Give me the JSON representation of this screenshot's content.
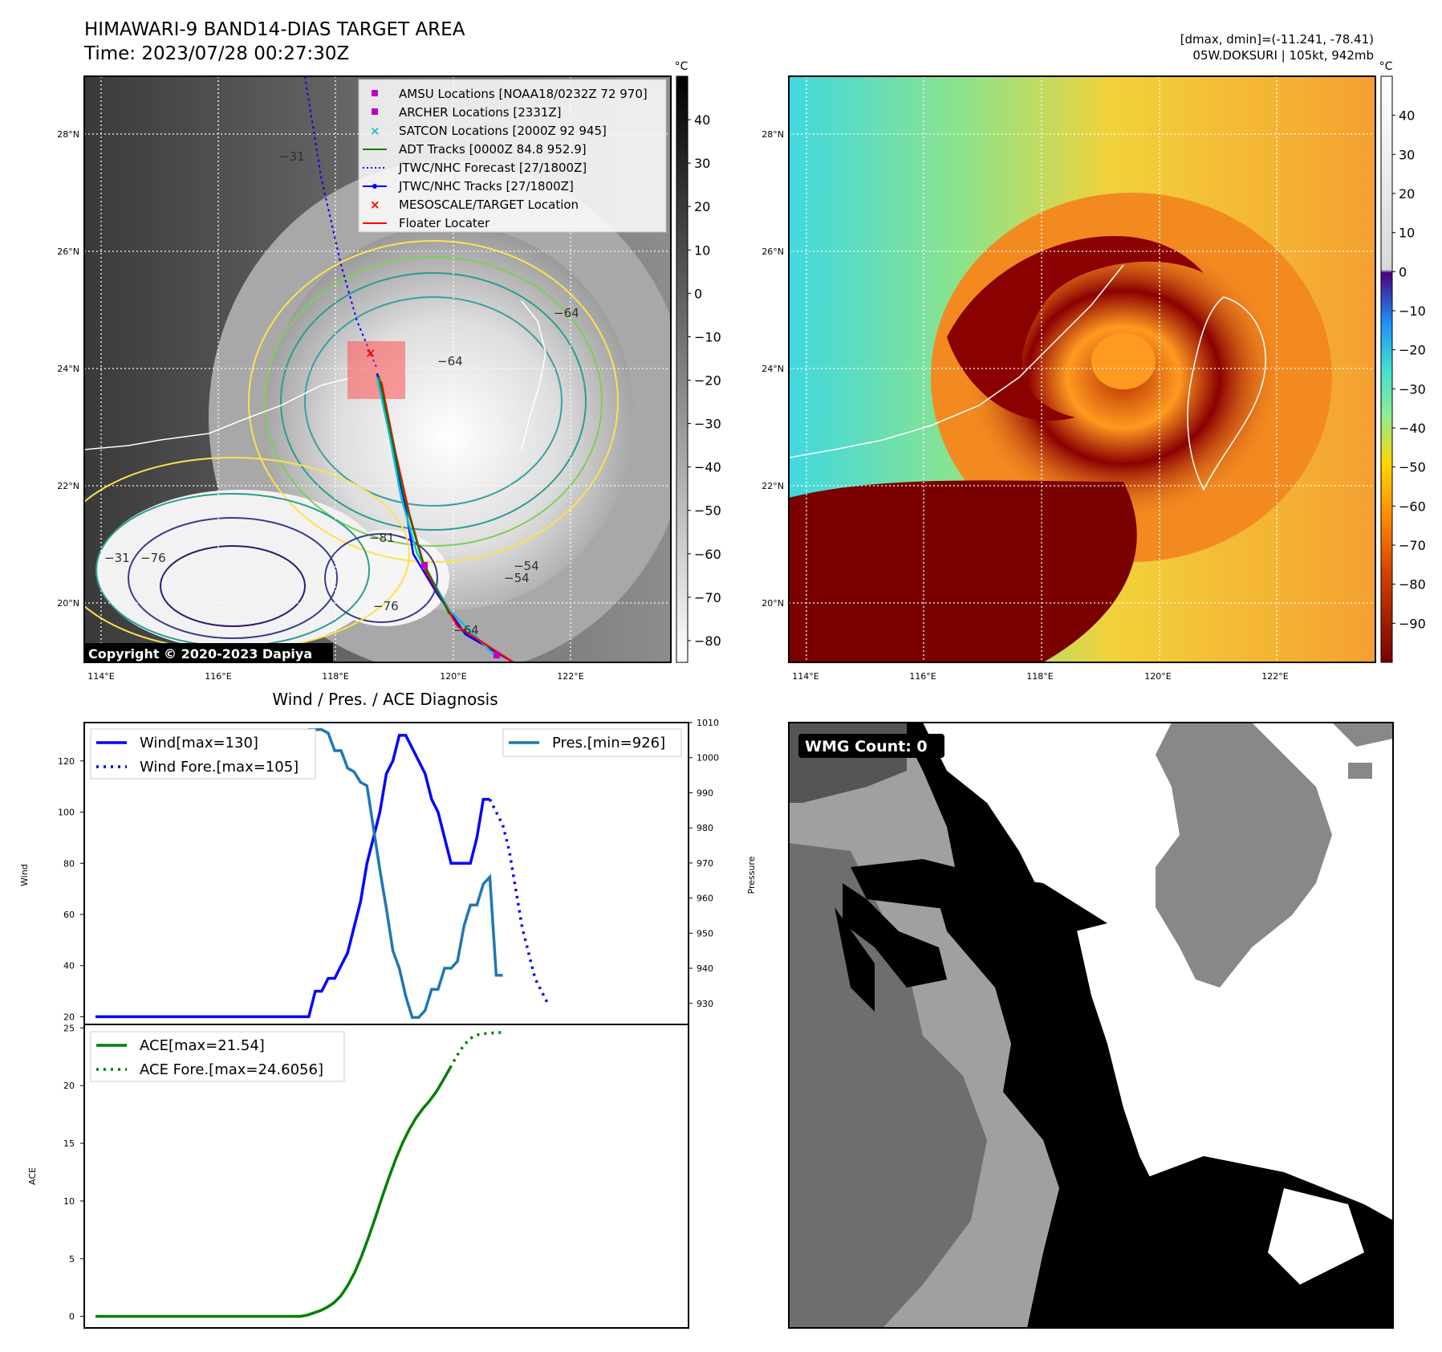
{
  "header": {
    "title": "HIMAWARI-9 BAND14-DIAS TARGET AREA",
    "time": "Time: 2023/07/28 00:27:30Z",
    "dmax_dmin": "[dmax, dmin]=(-11.241, -78.41)",
    "storm": "05W.DOKSURI | 105kt, 942mb"
  },
  "maps": {
    "lon_ticks": [
      "114°E",
      "116°E",
      "118°E",
      "120°E",
      "122°E"
    ],
    "lat_ticks": [
      "28°N",
      "26°N",
      "24°N",
      "22°N",
      "20°N"
    ],
    "unit": "°C",
    "copyright": "Copyright © 2020-2023 Dapiya",
    "left_colorbar_ticks": [
      "40",
      "30",
      "20",
      "10",
      "0",
      "−10",
      "−20",
      "−30",
      "−40",
      "−50",
      "−60",
      "−70",
      "−80"
    ],
    "right_colorbar_ticks": [
      "40",
      "30",
      "20",
      "10",
      "0",
      "−10",
      "−20",
      "−30",
      "−40",
      "−50",
      "−60",
      "−70",
      "−80",
      "−90"
    ],
    "contour_labels": [
      "−31",
      "−54",
      "−64",
      "−76",
      "−81",
      "−76",
      "−64",
      "−54",
      "−31",
      "−64"
    ],
    "legend": [
      "AMSU Locations [NOAA18/0232Z 72 970]",
      "ARCHER Locations [2331Z]",
      "SATCON Locations [2000Z 92 945]",
      "ADT Tracks [0000Z 84.8 952.9]",
      "JTWC/NHC Forecast [27/1800Z]",
      "JTWC/NHC Tracks [27/1800Z]",
      "MESOSCALE/TARGET Location",
      "Floater Locater"
    ]
  },
  "wmg": {
    "label": "WMG Count: 0"
  },
  "colors": {
    "wind": "#0000ff",
    "pressure": "#1f77b4",
    "ace": "#008000",
    "amsu": "#c000c0",
    "satcon": "#17becf",
    "target": "#ff0000"
  },
  "chart_data": [
    {
      "type": "line",
      "title": "Wind / Pres. / ACE Diagnosis",
      "ylabel": "Wind",
      "y2label": "Pressure",
      "ylim": [
        17,
        135
      ],
      "y2lim": [
        924,
        1010
      ],
      "yticks": [
        20,
        40,
        60,
        80,
        100,
        120
      ],
      "y2ticks": [
        930,
        940,
        950,
        960,
        970,
        980,
        990,
        1000,
        1010
      ],
      "x": [
        0,
        1,
        2,
        3,
        4,
        5,
        6,
        7,
        8,
        9,
        10,
        11,
        12,
        13,
        14,
        15,
        16,
        17,
        18,
        19,
        20,
        21,
        22,
        23,
        24,
        25,
        26,
        27,
        28,
        29,
        30,
        31,
        32,
        33,
        34,
        35,
        36,
        37,
        38,
        39,
        40,
        41,
        42,
        43,
        44,
        45,
        46,
        47,
        48,
        49,
        50,
        51,
        52,
        53,
        54,
        55,
        56,
        57,
        58,
        59,
        60,
        61,
        62,
        63,
        64,
        65,
        66,
        67,
        68,
        69,
        70,
        71,
        72,
        73,
        74,
        75,
        76,
        77,
        78,
        79,
        80,
        81,
        82,
        83,
        84,
        85,
        86,
        87,
        88,
        89,
        90
      ],
      "series": [
        {
          "name": "Wind[max=130]",
          "style": "solid",
          "values": [
            20,
            20,
            20,
            20,
            20,
            20,
            20,
            20,
            20,
            20,
            20,
            20,
            20,
            20,
            20,
            20,
            20,
            20,
            20,
            20,
            20,
            20,
            20,
            20,
            20,
            20,
            20,
            20,
            20,
            20,
            20,
            20,
            20,
            20,
            30,
            30,
            35,
            35,
            40,
            45,
            55,
            65,
            80,
            90,
            100,
            115,
            120,
            130,
            130,
            125,
            120,
            115,
            105,
            100,
            90,
            80,
            80,
            80,
            80,
            90,
            105,
            105,
            null,
            null,
            null,
            null,
            null,
            null,
            null,
            null,
            null,
            null,
            null,
            null,
            null,
            null,
            null,
            null,
            null,
            null,
            null,
            null,
            null,
            null,
            null,
            null,
            null,
            null,
            null,
            null,
            null
          ]
        },
        {
          "name": "Wind Fore.[max=105]",
          "style": "dotted",
          "values": [
            null,
            null,
            null,
            null,
            null,
            null,
            null,
            null,
            null,
            null,
            null,
            null,
            null,
            null,
            null,
            null,
            null,
            null,
            null,
            null,
            null,
            null,
            null,
            null,
            null,
            null,
            null,
            null,
            null,
            null,
            null,
            null,
            null,
            null,
            null,
            null,
            null,
            null,
            null,
            null,
            null,
            null,
            null,
            null,
            null,
            null,
            null,
            null,
            null,
            null,
            null,
            null,
            null,
            null,
            null,
            null,
            null,
            null,
            null,
            null,
            null,
            105,
            100,
            95,
            85,
            70,
            55,
            45,
            35,
            30,
            25,
            null,
            null,
            null,
            null,
            null,
            null,
            null,
            null,
            null,
            null,
            null,
            null,
            null,
            null,
            null,
            null,
            null,
            null,
            null,
            null
          ]
        },
        {
          "name": "Pres.[min=926]",
          "axis": "y2",
          "style": "solid",
          "values": [
            1007,
            1007,
            1007,
            1007,
            1007,
            1007,
            1007,
            1007,
            1007,
            1007,
            1007,
            1007,
            1007,
            1007,
            1007,
            1007,
            1007,
            1007,
            1007,
            1007,
            1007,
            1007,
            1007,
            1007,
            1007,
            1007,
            1007,
            1007,
            1007,
            1007,
            1007,
            1007,
            1007,
            1008,
            1008,
            1008,
            1007,
            1002,
            1002,
            997,
            996,
            993,
            992,
            980,
            968,
            957,
            945,
            940,
            932,
            926,
            926,
            928,
            934,
            934,
            940,
            940,
            942,
            952,
            958,
            958,
            964,
            966,
            938,
            938,
            null,
            null,
            null,
            null,
            null,
            null,
            null,
            null,
            null,
            null,
            null,
            null,
            null,
            null,
            null,
            null,
            null,
            null,
            null,
            null,
            null,
            null,
            null,
            null,
            null,
            null,
            null
          ]
        }
      ]
    },
    {
      "type": "line",
      "ylabel": "ACE",
      "ylim": [
        -1,
        25.3
      ],
      "yticks": [
        0,
        5,
        10,
        15,
        20,
        25
      ],
      "x": [
        0,
        1,
        2,
        3,
        4,
        5,
        6,
        7,
        8,
        9,
        10,
        11,
        12,
        13,
        14,
        15,
        16,
        17,
        18,
        19,
        20,
        21,
        22,
        23,
        24,
        25,
        26,
        27,
        28,
        29,
        30,
        31,
        32,
        33,
        34,
        35,
        36,
        37,
        38,
        39,
        40,
        41,
        42,
        43,
        44,
        45,
        46,
        47,
        48,
        49,
        50,
        51,
        52,
        53,
        54,
        55,
        56,
        57,
        58,
        59,
        60,
        61,
        62,
        63,
        64,
        65,
        66,
        67,
        68,
        69,
        70
      ],
      "series": [
        {
          "name": "ACE[max=21.54]",
          "style": "solid",
          "values": [
            0,
            0,
            0,
            0,
            0,
            0,
            0,
            0,
            0,
            0,
            0,
            0,
            0,
            0,
            0,
            0,
            0,
            0,
            0,
            0,
            0,
            0,
            0,
            0,
            0,
            0,
            0,
            0,
            0,
            0,
            0,
            0.1,
            0.3,
            0.5,
            0.8,
            1.2,
            1.8,
            2.7,
            3.8,
            5.2,
            6.8,
            8.5,
            10.3,
            12.0,
            13.6,
            15.0,
            16.2,
            17.2,
            18.0,
            18.7,
            19.5,
            20.5,
            21.54,
            null,
            null,
            null,
            null,
            null,
            null,
            null,
            null,
            null,
            null,
            null,
            null,
            null,
            null,
            null,
            null,
            null,
            null
          ]
        },
        {
          "name": "ACE Fore.[max=24.6056]",
          "style": "dotted",
          "values": [
            null,
            null,
            null,
            null,
            null,
            null,
            null,
            null,
            null,
            null,
            null,
            null,
            null,
            null,
            null,
            null,
            null,
            null,
            null,
            null,
            null,
            null,
            null,
            null,
            null,
            null,
            null,
            null,
            null,
            null,
            null,
            null,
            null,
            null,
            null,
            null,
            null,
            null,
            null,
            null,
            null,
            null,
            null,
            null,
            null,
            null,
            null,
            null,
            null,
            null,
            null,
            null,
            21.54,
            22.6,
            23.5,
            24.1,
            24.4,
            24.5,
            24.55,
            24.6,
            24.6056,
            null,
            null,
            null,
            null,
            null,
            null,
            null,
            null,
            null,
            null
          ]
        }
      ]
    }
  ]
}
